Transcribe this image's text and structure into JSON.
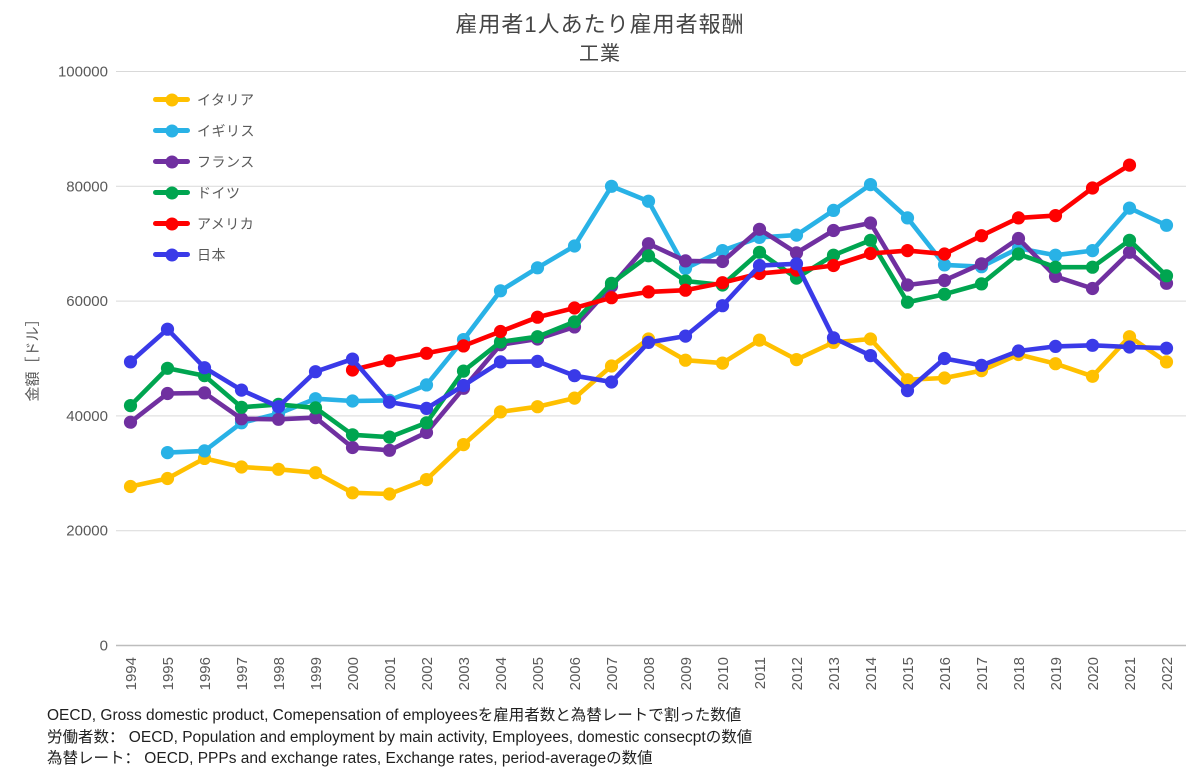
{
  "chart_data": {
    "type": "line",
    "title": "雇用者1人あたり雇用者報酬",
    "subtitle": "工業",
    "ylabel": "金額［ドル］",
    "ylim": [
      0,
      100000
    ],
    "yticks": [
      0,
      20000,
      40000,
      60000,
      80000,
      100000
    ],
    "grid": true,
    "legend_position": "top-left-inside",
    "x": [
      1994,
      1995,
      1996,
      1997,
      1998,
      1999,
      2000,
      2001,
      2002,
      2003,
      2004,
      2005,
      2006,
      2007,
      2008,
      2009,
      2010,
      2011,
      2012,
      2013,
      2014,
      2015,
      2016,
      2017,
      2018,
      2019,
      2020,
      2021,
      2022
    ],
    "series": [
      {
        "id": "italy",
        "name": "イタリア",
        "color": "#FFC000",
        "values": [
          27700,
          29100,
          32600,
          31100,
          30700,
          30100,
          26600,
          26400,
          28900,
          35000,
          40700,
          41600,
          43100,
          48700,
          53400,
          49700,
          49200,
          53200,
          49800,
          52800,
          53400,
          46300,
          46600,
          47900,
          50700,
          49100,
          46900,
          53800,
          49400
        ]
      },
      {
        "id": "uk",
        "name": "イギリス",
        "color": "#29B2E6",
        "values": [
          null,
          33600,
          33900,
          38800,
          40400,
          43000,
          42600,
          42700,
          45400,
          53300,
          61800,
          65800,
          69600,
          80000,
          77400,
          65700,
          68800,
          71100,
          71500,
          75800,
          80300,
          74500,
          66300,
          66000,
          69200,
          68000,
          68800,
          76200,
          73200
        ]
      },
      {
        "id": "france",
        "name": "フランス",
        "color": "#7030A0",
        "values": [
          38900,
          43900,
          44000,
          39500,
          39400,
          39700,
          34500,
          34000,
          37100,
          44800,
          52400,
          53400,
          55500,
          62600,
          70000,
          67000,
          66900,
          72500,
          68400,
          72300,
          73600,
          62800,
          63600,
          66500,
          70900,
          64300,
          62200,
          68500,
          63100
        ]
      },
      {
        "id": "germany",
        "name": "ドイツ",
        "color": "#00A550",
        "values": [
          41800,
          48300,
          47000,
          41500,
          42000,
          41400,
          36700,
          36300,
          38800,
          47800,
          52900,
          53800,
          56400,
          63100,
          67900,
          63500,
          62800,
          68500,
          64000,
          68000,
          70600,
          59800,
          61200,
          63000,
          68200,
          65900,
          65900,
          70600,
          64400
        ]
      },
      {
        "id": "usa",
        "name": "アメリカ",
        "color": "#FF0000",
        "values": [
          null,
          null,
          null,
          null,
          null,
          null,
          48000,
          49600,
          50900,
          52200,
          54700,
          57200,
          58800,
          60600,
          61600,
          61900,
          63200,
          64800,
          65400,
          66200,
          68300,
          68800,
          68200,
          71400,
          74500,
          74900,
          79700,
          83700,
          null
        ]
      },
      {
        "id": "japan",
        "name": "日本",
        "color": "#3A3AE8",
        "values": [
          49400,
          55100,
          48400,
          44500,
          41600,
          47700,
          49900,
          42400,
          41300,
          45300,
          49400,
          49500,
          47000,
          45900,
          52800,
          53900,
          59200,
          66200,
          66500,
          53600,
          50500,
          44400,
          50000,
          48800,
          51300,
          52100,
          52300,
          52000,
          51800
        ]
      }
    ],
    "footnotes": [
      "OECD, Gross domestic product, Comepensation of employeesを雇用者数と為替レートで割った数値",
      "労働者数： OECD, Population and employment by main activity, Employees, domestic consecptの数値",
      "為替レート： OECD, PPPs and exchange rates, Exchange rates, period-averageの数値"
    ]
  }
}
